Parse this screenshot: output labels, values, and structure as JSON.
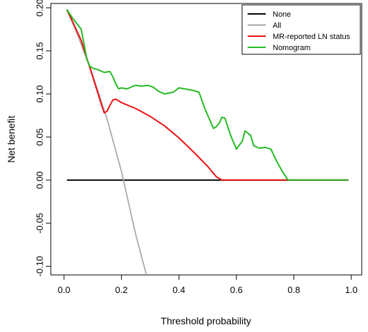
{
  "chart_data": {
    "type": "line",
    "title": "",
    "xlabel": "Threshold probability",
    "ylabel": "Net benefit",
    "xlim": [
      0.0,
      1.0
    ],
    "ylim": [
      -0.11,
      0.205
    ],
    "xticks": [
      "0.0",
      "0.2",
      "0.4",
      "0.6",
      "0.8",
      "1.0"
    ],
    "yticks": [
      "-0.10",
      "-0.05",
      "0.00",
      "0.05",
      "0.10",
      "0.15",
      "0.20"
    ],
    "grid": false,
    "legend_position": "top-right",
    "series": [
      {
        "name": "None",
        "color": "#000000",
        "x": [
          0.01,
          0.99
        ],
        "y": [
          0.0,
          0.0
        ]
      },
      {
        "name": "All",
        "color": "#aaaaaa",
        "x": [
          0.01,
          0.05,
          0.1,
          0.15,
          0.2,
          0.25,
          0.287
        ],
        "y": [
          0.198,
          0.166,
          0.122,
          0.071,
          0.01,
          -0.064,
          -0.11
        ]
      },
      {
        "name": "MR-reported LN status",
        "color": "#ee1111",
        "x": [
          0.01,
          0.03,
          0.06,
          0.1,
          0.13,
          0.14,
          0.15,
          0.16,
          0.17,
          0.18,
          0.2,
          0.25,
          0.3,
          0.35,
          0.4,
          0.45,
          0.5,
          0.53,
          0.55,
          0.6,
          0.7,
          0.8,
          0.9,
          0.99
        ],
        "y": [
          0.198,
          0.184,
          0.162,
          0.12,
          0.088,
          0.078,
          0.08,
          0.087,
          0.093,
          0.094,
          0.09,
          0.083,
          0.074,
          0.063,
          0.049,
          0.033,
          0.016,
          0.004,
          0.0,
          0.0,
          0.0,
          0.0,
          0.0,
          0.0
        ]
      },
      {
        "name": "Nomogram",
        "color": "#22bb22",
        "x": [
          0.01,
          0.03,
          0.06,
          0.08,
          0.09,
          0.1,
          0.12,
          0.14,
          0.16,
          0.17,
          0.18,
          0.19,
          0.2,
          0.22,
          0.24,
          0.25,
          0.27,
          0.29,
          0.31,
          0.33,
          0.35,
          0.38,
          0.4,
          0.42,
          0.45,
          0.47,
          0.49,
          0.51,
          0.52,
          0.53,
          0.54,
          0.55,
          0.56,
          0.58,
          0.6,
          0.62,
          0.63,
          0.65,
          0.66,
          0.68,
          0.7,
          0.72,
          0.74,
          0.76,
          0.78,
          0.79,
          0.8,
          0.9,
          0.99
        ],
        "y": [
          0.198,
          0.188,
          0.175,
          0.14,
          0.132,
          0.13,
          0.128,
          0.125,
          0.126,
          0.12,
          0.112,
          0.106,
          0.107,
          0.106,
          0.109,
          0.11,
          0.109,
          0.11,
          0.108,
          0.103,
          0.1,
          0.102,
          0.107,
          0.106,
          0.104,
          0.102,
          0.083,
          0.068,
          0.06,
          0.062,
          0.066,
          0.073,
          0.072,
          0.052,
          0.036,
          0.045,
          0.057,
          0.052,
          0.04,
          0.037,
          0.038,
          0.036,
          0.022,
          0.01,
          0.0,
          0.0,
          0.0,
          0.0,
          0.0
        ]
      }
    ]
  }
}
